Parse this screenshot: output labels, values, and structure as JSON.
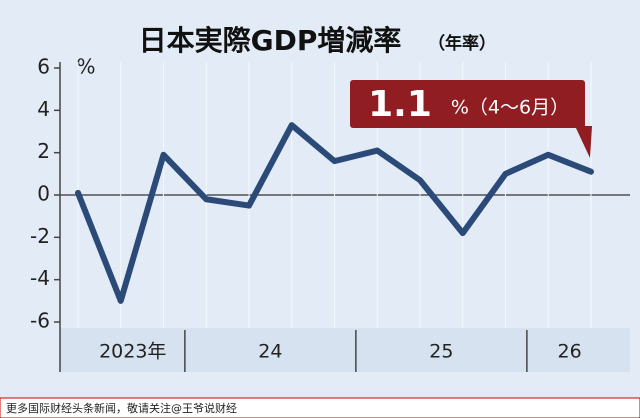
{
  "chart_data": {
    "type": "line",
    "title": "日本実際GDP増減率",
    "subtitle": "（年率）",
    "y_unit": "%",
    "categories": [
      null,
      null,
      null,
      null,
      null,
      null,
      null,
      null,
      null,
      null,
      null,
      null,
      null
    ],
    "groups": [
      {
        "label": "2023年",
        "count": 3
      },
      {
        "label": "24",
        "count": 4
      },
      {
        "label": "25",
        "count": 4
      },
      {
        "label": "26",
        "count": 2
      }
    ],
    "series": [
      {
        "name": "GDP",
        "color": "#2b4a78",
        "values": [
          0.1,
          -5.0,
          1.9,
          -0.2,
          -0.5,
          3.3,
          1.6,
          2.1,
          0.7,
          -1.8,
          1.0,
          1.9,
          1.1
        ]
      }
    ],
    "ylim": [
      -6,
      6.5
    ],
    "yticks": [
      -6,
      -4,
      -2,
      0,
      2,
      4,
      6
    ],
    "annotation": {
      "value": "1.1",
      "suffix": "%（4〜6月）"
    },
    "footer": "更多国际财经头条新闻，敬请关注@王爷说财经"
  }
}
